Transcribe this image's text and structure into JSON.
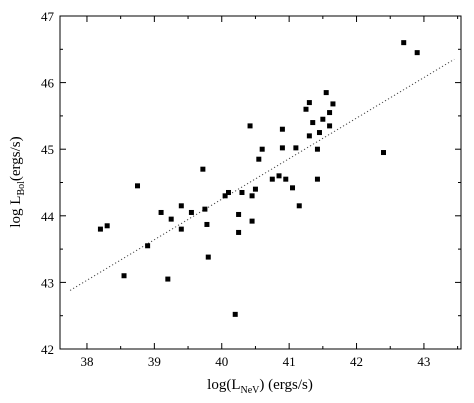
{
  "chart_data": {
    "type": "scatter",
    "title": "",
    "xlabel": {
      "prefix": "log(L",
      "sub": "NeV",
      "suffix": ") (ergs/s)"
    },
    "ylabel": {
      "prefix": "log L",
      "sub": "Bol",
      "suffix": "(ergs/s)"
    },
    "xlim": [
      37.6,
      43.55
    ],
    "ylim": [
      42,
      47
    ],
    "xticks": [
      "38",
      "39",
      "40",
      "41",
      "42",
      "43"
    ],
    "yticks": [
      "42",
      "43",
      "44",
      "45",
      "46",
      "47"
    ],
    "grid": false,
    "legend": "none",
    "marker": "filled-square",
    "colors": {
      "points": "#000000",
      "fit_line": "#444444"
    },
    "series": [
      {
        "points": [
          [
            38.2,
            43.8
          ],
          [
            38.3,
            43.85
          ],
          [
            38.55,
            43.1
          ],
          [
            38.75,
            44.45
          ],
          [
            38.9,
            43.55
          ],
          [
            39.1,
            44.05
          ],
          [
            39.2,
            43.05
          ],
          [
            39.25,
            43.95
          ],
          [
            39.4,
            44.15
          ],
          [
            39.4,
            43.8
          ],
          [
            39.55,
            44.05
          ],
          [
            39.72,
            44.7
          ],
          [
            39.75,
            44.1
          ],
          [
            39.78,
            43.87
          ],
          [
            39.8,
            43.38
          ],
          [
            40.05,
            44.3
          ],
          [
            40.1,
            44.35
          ],
          [
            40.2,
            42.52
          ],
          [
            40.25,
            43.75
          ],
          [
            40.25,
            44.02
          ],
          [
            40.3,
            44.35
          ],
          [
            40.42,
            45.35
          ],
          [
            40.45,
            44.3
          ],
          [
            40.45,
            43.92
          ],
          [
            40.5,
            44.4
          ],
          [
            40.55,
            44.85
          ],
          [
            40.6,
            45.0
          ],
          [
            40.75,
            44.55
          ],
          [
            40.85,
            44.6
          ],
          [
            40.9,
            45.3
          ],
          [
            40.9,
            45.02
          ],
          [
            40.95,
            44.55
          ],
          [
            41.05,
            44.42
          ],
          [
            41.1,
            45.02
          ],
          [
            41.15,
            44.15
          ],
          [
            41.25,
            45.6
          ],
          [
            41.3,
            45.7
          ],
          [
            41.3,
            45.2
          ],
          [
            41.35,
            45.4
          ],
          [
            41.42,
            45.0
          ],
          [
            41.42,
            44.55
          ],
          [
            41.45,
            45.25
          ],
          [
            41.5,
            45.45
          ],
          [
            41.55,
            45.85
          ],
          [
            41.6,
            45.55
          ],
          [
            41.6,
            45.35
          ],
          [
            41.65,
            45.68
          ],
          [
            42.4,
            44.95
          ],
          [
            42.7,
            46.6
          ],
          [
            42.9,
            46.45
          ]
        ]
      }
    ],
    "fit_line": {
      "style": "dotted",
      "x": [
        37.75,
        43.45
      ],
      "y": [
        42.88,
        46.35
      ]
    }
  }
}
